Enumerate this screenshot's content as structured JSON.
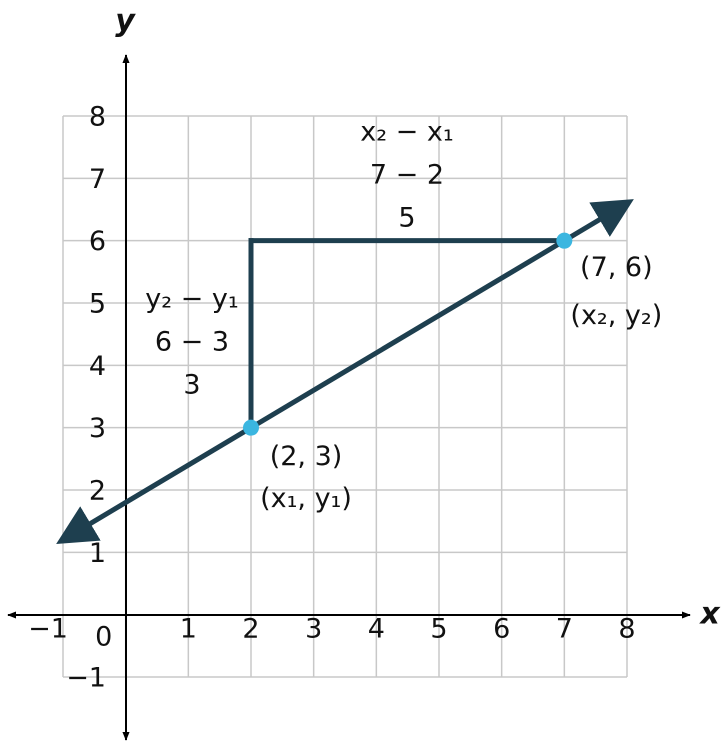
{
  "chart_data": {
    "type": "line",
    "xlabel": "x",
    "ylabel": "y",
    "xlim": [
      -1,
      8
    ],
    "ylim": [
      -1,
      8
    ],
    "xticks": [
      {
        "value": -1,
        "label": "−1"
      },
      0,
      1,
      2,
      3,
      4,
      5,
      6,
      7,
      8
    ],
    "yticks": [
      {
        "value": -1,
        "label": "−1"
      },
      1,
      2,
      3,
      4,
      5,
      6,
      7,
      8
    ],
    "grid": true,
    "line": {
      "x": [
        -1,
        8
      ],
      "y": [
        1.2,
        6.6
      ],
      "color": "#1e3f4f"
    },
    "rise_leg": {
      "x": [
        2,
        2
      ],
      "y": [
        3,
        6
      ]
    },
    "run_leg": {
      "x": [
        2,
        7
      ],
      "y": [
        6,
        6
      ]
    },
    "points": {
      "x": [
        2,
        7
      ],
      "y": [
        3,
        6
      ],
      "color": "#3bb6e0",
      "labels": [
        [
          "(2, 3)",
          "(x₁, y₁)"
        ],
        [
          "(7, 6)",
          "(x₂, y₂)"
        ]
      ]
    },
    "rise_text": [
      "y₂ − y₁",
      "6 − 3",
      "3"
    ],
    "run_text": [
      "x₂ − x₁",
      "7 − 2",
      "5"
    ]
  }
}
